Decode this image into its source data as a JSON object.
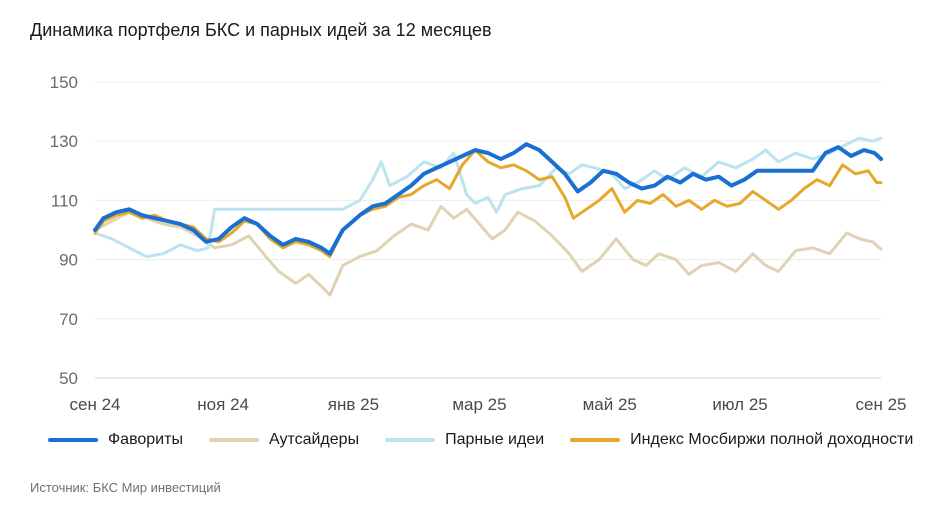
{
  "chart_data": {
    "type": "line",
    "title": "Динамика портфеля БКС и парных идей за 12 месяцев",
    "source": "Источник: БКС Мир инвестиций",
    "ylim": [
      50,
      150
    ],
    "yticks": [
      50,
      70,
      90,
      110,
      130,
      150
    ],
    "xlim": [
      "2024-09-02",
      "2025-09-05"
    ],
    "xticks": [
      {
        "label": "сен 24",
        "date": "2024-09-01"
      },
      {
        "label": "ноя 24",
        "date": "2024-11-01"
      },
      {
        "label": "янв 25",
        "date": "2025-01-01"
      },
      {
        "label": "мар 25",
        "date": "2025-03-01"
      },
      {
        "label": "май 25",
        "date": "2025-05-01"
      },
      {
        "label": "июл 25",
        "date": "2025-07-01"
      },
      {
        "label": "сен 25",
        "date": "2025-09-01"
      }
    ],
    "grid": true,
    "legend_position": "bottom",
    "series": [
      {
        "name": "Аутсайдеры",
        "color": "#e0d3b5",
        "width": 3,
        "points": [
          [
            "2024-09-02",
            100
          ],
          [
            "2024-09-10",
            103
          ],
          [
            "2024-09-18",
            106
          ],
          [
            "2024-09-26",
            104
          ],
          [
            "2024-10-04",
            102
          ],
          [
            "2024-10-12",
            101
          ],
          [
            "2024-10-20",
            98
          ],
          [
            "2024-10-28",
            94
          ],
          [
            "2024-11-05",
            95
          ],
          [
            "2024-11-13",
            98
          ],
          [
            "2024-11-21",
            91
          ],
          [
            "2024-11-27",
            86
          ],
          [
            "2024-12-05",
            82
          ],
          [
            "2024-12-11",
            85
          ],
          [
            "2024-12-17",
            81
          ],
          [
            "2024-12-21",
            78
          ],
          [
            "2024-12-27",
            88
          ],
          [
            "2025-01-04",
            91
          ],
          [
            "2025-01-12",
            93
          ],
          [
            "2025-01-20",
            98
          ],
          [
            "2025-01-28",
            102
          ],
          [
            "2025-02-05",
            100
          ],
          [
            "2025-02-11",
            108
          ],
          [
            "2025-02-17",
            104
          ],
          [
            "2025-02-23",
            107
          ],
          [
            "2025-03-01",
            102
          ],
          [
            "2025-03-07",
            97
          ],
          [
            "2025-03-13",
            100
          ],
          [
            "2025-03-19",
            106
          ],
          [
            "2025-03-27",
            103
          ],
          [
            "2025-04-04",
            98
          ],
          [
            "2025-04-12",
            92
          ],
          [
            "2025-04-18",
            86
          ],
          [
            "2025-04-26",
            90
          ],
          [
            "2025-05-04",
            97
          ],
          [
            "2025-05-12",
            90
          ],
          [
            "2025-05-18",
            88
          ],
          [
            "2025-05-24",
            92
          ],
          [
            "2025-06-01",
            90
          ],
          [
            "2025-06-07",
            85
          ],
          [
            "2025-06-13",
            88
          ],
          [
            "2025-06-21",
            89
          ],
          [
            "2025-06-29",
            86
          ],
          [
            "2025-07-07",
            92
          ],
          [
            "2025-07-13",
            88
          ],
          [
            "2025-07-19",
            86
          ],
          [
            "2025-07-27",
            93
          ],
          [
            "2025-08-04",
            94
          ],
          [
            "2025-08-12",
            92
          ],
          [
            "2025-08-20",
            99
          ],
          [
            "2025-08-26",
            97
          ],
          [
            "2025-09-01",
            96
          ],
          [
            "2025-09-05",
            93.5
          ]
        ]
      },
      {
        "name": "Парные идеи",
        "color": "#bde3f0",
        "width": 3,
        "points": [
          [
            "2024-09-02",
            99
          ],
          [
            "2024-09-10",
            97
          ],
          [
            "2024-09-18",
            94
          ],
          [
            "2024-09-26",
            91
          ],
          [
            "2024-10-04",
            92
          ],
          [
            "2024-10-12",
            95
          ],
          [
            "2024-10-20",
            93
          ],
          [
            "2024-10-25",
            94
          ],
          [
            "2024-10-28",
            107
          ],
          [
            "2024-11-15",
            107
          ],
          [
            "2024-12-15",
            107
          ],
          [
            "2024-12-27",
            107
          ],
          [
            "2025-01-04",
            110
          ],
          [
            "2025-01-10",
            117
          ],
          [
            "2025-01-14",
            123
          ],
          [
            "2025-01-18",
            115
          ],
          [
            "2025-01-26",
            118
          ],
          [
            "2025-02-03",
            123
          ],
          [
            "2025-02-11",
            121
          ],
          [
            "2025-02-17",
            126
          ],
          [
            "2025-02-23",
            112
          ],
          [
            "2025-02-27",
            109
          ],
          [
            "2025-03-05",
            111
          ],
          [
            "2025-03-09",
            106
          ],
          [
            "2025-03-13",
            112
          ],
          [
            "2025-03-21",
            114
          ],
          [
            "2025-03-29",
            115
          ],
          [
            "2025-04-06",
            121
          ],
          [
            "2025-04-12",
            119
          ],
          [
            "2025-04-18",
            122
          ],
          [
            "2025-04-24",
            121
          ],
          [
            "2025-05-02",
            119
          ],
          [
            "2025-05-08",
            114
          ],
          [
            "2025-05-14",
            116
          ],
          [
            "2025-05-22",
            120
          ],
          [
            "2025-05-28",
            117
          ],
          [
            "2025-06-05",
            121
          ],
          [
            "2025-06-13",
            118
          ],
          [
            "2025-06-21",
            123
          ],
          [
            "2025-06-29",
            121
          ],
          [
            "2025-07-07",
            124
          ],
          [
            "2025-07-13",
            127
          ],
          [
            "2025-07-19",
            123
          ],
          [
            "2025-07-27",
            126
          ],
          [
            "2025-08-04",
            124
          ],
          [
            "2025-08-12",
            126
          ],
          [
            "2025-08-20",
            129
          ],
          [
            "2025-08-26",
            131
          ],
          [
            "2025-09-01",
            130
          ],
          [
            "2025-09-05",
            131
          ]
        ]
      },
      {
        "name": "Индекс Мосбиржи полной доходности",
        "color": "#e6a82a",
        "width": 3,
        "points": [
          [
            "2024-09-02",
            99
          ],
          [
            "2024-09-06",
            103
          ],
          [
            "2024-09-12",
            105
          ],
          [
            "2024-09-18",
            106
          ],
          [
            "2024-09-24",
            104
          ],
          [
            "2024-09-30",
            105
          ],
          [
            "2024-10-06",
            103
          ],
          [
            "2024-10-12",
            102
          ],
          [
            "2024-10-18",
            101
          ],
          [
            "2024-10-24",
            97
          ],
          [
            "2024-10-30",
            96
          ],
          [
            "2024-11-05",
            99
          ],
          [
            "2024-11-11",
            103
          ],
          [
            "2024-11-17",
            102
          ],
          [
            "2024-11-23",
            97
          ],
          [
            "2024-11-29",
            94
          ],
          [
            "2024-12-05",
            96
          ],
          [
            "2024-12-11",
            95
          ],
          [
            "2024-12-17",
            93
          ],
          [
            "2024-12-21",
            91
          ],
          [
            "2024-12-27",
            100
          ],
          [
            "2025-01-04",
            105
          ],
          [
            "2025-01-10",
            107
          ],
          [
            "2025-01-16",
            108
          ],
          [
            "2025-01-22",
            111
          ],
          [
            "2025-01-28",
            112
          ],
          [
            "2025-02-03",
            115
          ],
          [
            "2025-02-09",
            117
          ],
          [
            "2025-02-15",
            114
          ],
          [
            "2025-02-21",
            122
          ],
          [
            "2025-02-27",
            127
          ],
          [
            "2025-03-05",
            123
          ],
          [
            "2025-03-11",
            121
          ],
          [
            "2025-03-17",
            122
          ],
          [
            "2025-03-23",
            120
          ],
          [
            "2025-03-29",
            117
          ],
          [
            "2025-04-04",
            118
          ],
          [
            "2025-04-10",
            111
          ],
          [
            "2025-04-14",
            104
          ],
          [
            "2025-04-20",
            107
          ],
          [
            "2025-04-26",
            110
          ],
          [
            "2025-05-02",
            114
          ],
          [
            "2025-05-08",
            106
          ],
          [
            "2025-05-14",
            110
          ],
          [
            "2025-05-20",
            109
          ],
          [
            "2025-05-26",
            112
          ],
          [
            "2025-06-01",
            108
          ],
          [
            "2025-06-07",
            110
          ],
          [
            "2025-06-13",
            107
          ],
          [
            "2025-06-19",
            110
          ],
          [
            "2025-06-25",
            108
          ],
          [
            "2025-07-01",
            109
          ],
          [
            "2025-07-07",
            113
          ],
          [
            "2025-07-13",
            110
          ],
          [
            "2025-07-19",
            107
          ],
          [
            "2025-07-25",
            110
          ],
          [
            "2025-07-31",
            114
          ],
          [
            "2025-08-06",
            117
          ],
          [
            "2025-08-12",
            115
          ],
          [
            "2025-08-18",
            122
          ],
          [
            "2025-08-24",
            119
          ],
          [
            "2025-08-30",
            120
          ],
          [
            "2025-09-03",
            116
          ],
          [
            "2025-09-05",
            116
          ]
        ]
      },
      {
        "name": "Фавориты",
        "color": "#1a6fd1",
        "width": 4,
        "points": [
          [
            "2024-09-02",
            100
          ],
          [
            "2024-09-06",
            104
          ],
          [
            "2024-09-12",
            106
          ],
          [
            "2024-09-18",
            107
          ],
          [
            "2024-09-24",
            105
          ],
          [
            "2024-09-30",
            104
          ],
          [
            "2024-10-06",
            103
          ],
          [
            "2024-10-12",
            102
          ],
          [
            "2024-10-18",
            100
          ],
          [
            "2024-10-24",
            96
          ],
          [
            "2024-10-30",
            97
          ],
          [
            "2024-11-05",
            101
          ],
          [
            "2024-11-11",
            104
          ],
          [
            "2024-11-17",
            102
          ],
          [
            "2024-11-23",
            98
          ],
          [
            "2024-11-29",
            95
          ],
          [
            "2024-12-05",
            97
          ],
          [
            "2024-12-11",
            96
          ],
          [
            "2024-12-17",
            94
          ],
          [
            "2024-12-21",
            92
          ],
          [
            "2024-12-27",
            100
          ],
          [
            "2025-01-04",
            105
          ],
          [
            "2025-01-10",
            108
          ],
          [
            "2025-01-16",
            109
          ],
          [
            "2025-01-22",
            112
          ],
          [
            "2025-01-28",
            115
          ],
          [
            "2025-02-03",
            119
          ],
          [
            "2025-02-09",
            121
          ],
          [
            "2025-02-15",
            123
          ],
          [
            "2025-02-21",
            125
          ],
          [
            "2025-02-27",
            127
          ],
          [
            "2025-03-05",
            126
          ],
          [
            "2025-03-11",
            124
          ],
          [
            "2025-03-17",
            126
          ],
          [
            "2025-03-23",
            129
          ],
          [
            "2025-03-29",
            127
          ],
          [
            "2025-04-04",
            123
          ],
          [
            "2025-04-10",
            119
          ],
          [
            "2025-04-16",
            113
          ],
          [
            "2025-04-22",
            116
          ],
          [
            "2025-04-28",
            120
          ],
          [
            "2025-05-04",
            119
          ],
          [
            "2025-05-10",
            116
          ],
          [
            "2025-05-16",
            114
          ],
          [
            "2025-05-22",
            115
          ],
          [
            "2025-05-28",
            118
          ],
          [
            "2025-06-03",
            116
          ],
          [
            "2025-06-09",
            119
          ],
          [
            "2025-06-15",
            117
          ],
          [
            "2025-06-21",
            118
          ],
          [
            "2025-06-27",
            115
          ],
          [
            "2025-07-03",
            117
          ],
          [
            "2025-07-09",
            120
          ],
          [
            "2025-07-15",
            120
          ],
          [
            "2025-07-27",
            120
          ],
          [
            "2025-08-04",
            120
          ],
          [
            "2025-08-10",
            126
          ],
          [
            "2025-08-16",
            128
          ],
          [
            "2025-08-22",
            125
          ],
          [
            "2025-08-28",
            127
          ],
          [
            "2025-09-02",
            126
          ],
          [
            "2025-09-05",
            124
          ]
        ]
      }
    ],
    "legend": [
      {
        "name": "Фавориты",
        "color": "#1a6fd1"
      },
      {
        "name": "Аутсайдеры",
        "color": "#e0d3b5"
      },
      {
        "name": "Парные идеи",
        "color": "#bde3f0"
      },
      {
        "name": "Индекс Мосбиржи полной доходности",
        "color": "#e6a82a"
      }
    ]
  }
}
